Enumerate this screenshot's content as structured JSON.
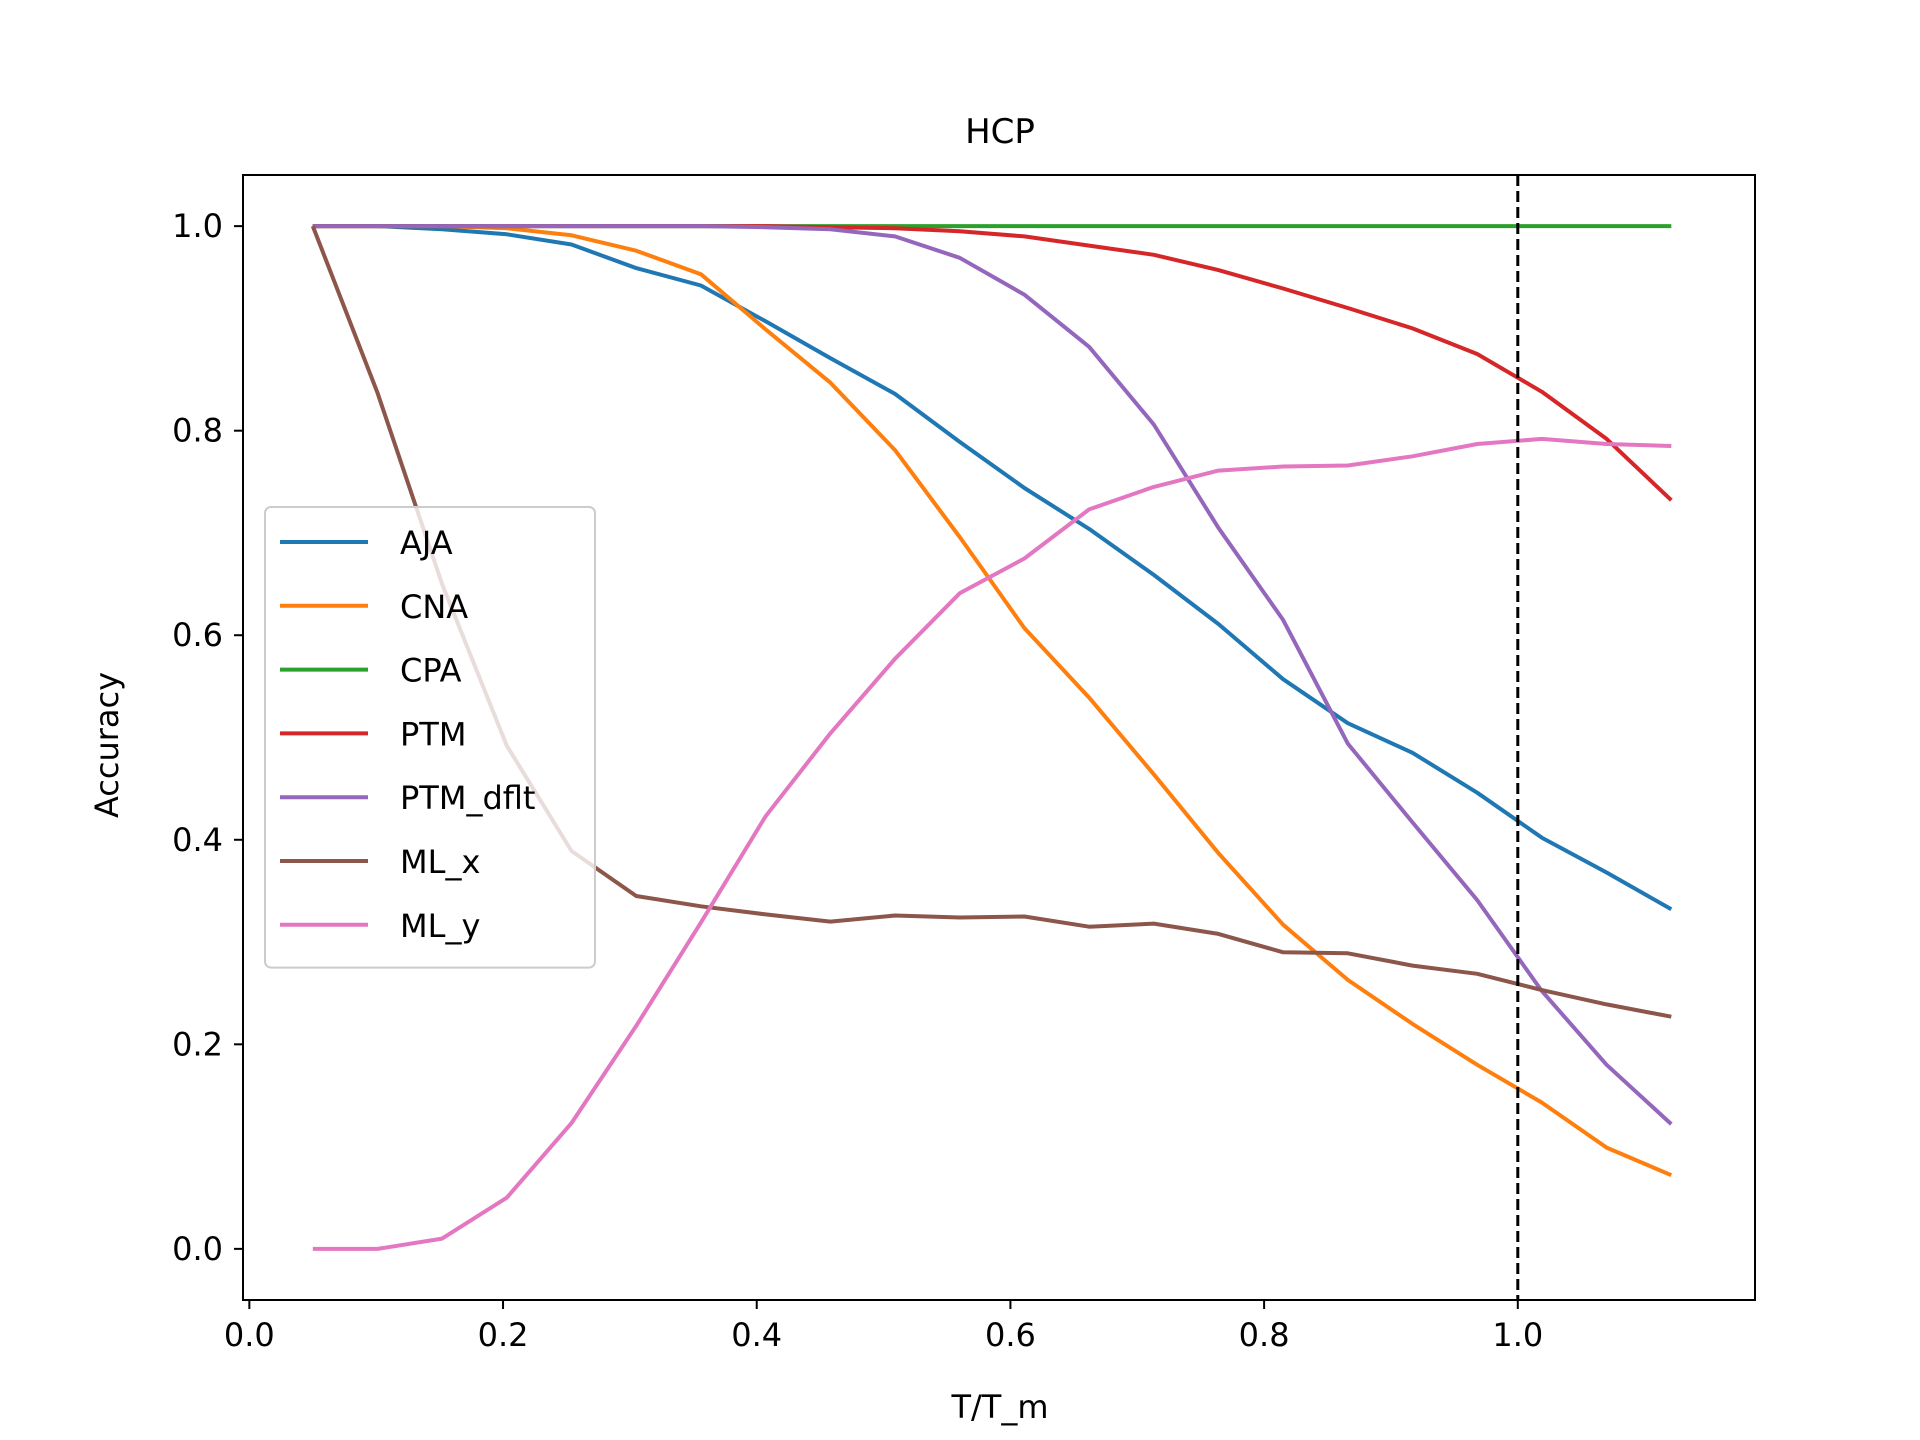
{
  "chart_data": {
    "type": "line",
    "title": "HCP",
    "xlabel": "T/T_m",
    "ylabel": "Accuracy",
    "xlim": [
      -0.005,
      1.187
    ],
    "ylim": [
      -0.05,
      1.05
    ],
    "xticks": [
      0.0,
      0.2,
      0.4,
      0.6,
      0.8,
      1.0
    ],
    "yticks": [
      0.0,
      0.2,
      0.4,
      0.6,
      0.8,
      1.0
    ],
    "xtick_labels": [
      "0.0",
      "0.2",
      "0.4",
      "0.6",
      "0.8",
      "1.0"
    ],
    "ytick_labels": [
      "0.0",
      "0.2",
      "0.4",
      "0.6",
      "0.8",
      "1.0"
    ],
    "grid": false,
    "legend_position": "center-left",
    "reference_line": {
      "x": 1.0,
      "style": "dashed",
      "color": "#000000"
    },
    "x": [
      0.05,
      0.101,
      0.152,
      0.203,
      0.254,
      0.305,
      0.356,
      0.407,
      0.458,
      0.509,
      0.56,
      0.611,
      0.662,
      0.713,
      0.764,
      0.815,
      0.866,
      0.917,
      0.968,
      1.019,
      1.07,
      1.121
    ],
    "series": [
      {
        "name": "AJA",
        "color": "#1f77b4",
        "values": [
          1.0,
          1.0,
          0.997,
          0.992,
          0.982,
          0.959,
          0.942,
          0.907,
          0.871,
          0.836,
          0.789,
          0.744,
          0.704,
          0.659,
          0.611,
          0.557,
          0.514,
          0.485,
          0.446,
          0.402,
          0.368,
          0.332
        ]
      },
      {
        "name": "CNA",
        "color": "#ff7f0e",
        "values": [
          1.0,
          1.0,
          1.0,
          0.998,
          0.991,
          0.976,
          0.953,
          0.899,
          0.847,
          0.781,
          0.696,
          0.607,
          0.539,
          0.464,
          0.387,
          0.317,
          0.263,
          0.22,
          0.18,
          0.143,
          0.099,
          0.072
        ]
      },
      {
        "name": "CPA",
        "color": "#2ca02c",
        "values": [
          1.0,
          1.0,
          1.0,
          1.0,
          1.0,
          1.0,
          1.0,
          1.0,
          1.0,
          1.0,
          1.0,
          1.0,
          1.0,
          1.0,
          1.0,
          1.0,
          1.0,
          1.0,
          1.0,
          1.0,
          1.0,
          1.0
        ]
      },
      {
        "name": "PTM",
        "color": "#d62728",
        "values": [
          1.0,
          1.0,
          1.0,
          1.0,
          1.0,
          1.0,
          1.0,
          1.0,
          0.999,
          0.998,
          0.995,
          0.99,
          0.981,
          0.972,
          0.957,
          0.939,
          0.92,
          0.9,
          0.875,
          0.838,
          0.792,
          0.732
        ]
      },
      {
        "name": "PTM_dflt",
        "color": "#9467bd",
        "values": [
          1.0,
          1.0,
          1.0,
          1.0,
          1.0,
          1.0,
          1.0,
          0.999,
          0.997,
          0.99,
          0.969,
          0.933,
          0.882,
          0.806,
          0.705,
          0.615,
          0.494,
          0.417,
          0.341,
          0.252,
          0.18,
          0.122
        ]
      },
      {
        "name": "ML_x",
        "color": "#8c564b",
        "values": [
          1.0,
          0.837,
          0.65,
          0.492,
          0.389,
          0.345,
          0.335,
          0.327,
          0.32,
          0.326,
          0.324,
          0.325,
          0.315,
          0.318,
          0.308,
          0.29,
          0.289,
          0.277,
          0.269,
          0.253,
          0.239,
          0.227
        ]
      },
      {
        "name": "ML_y",
        "color": "#e377c2",
        "values": [
          0.0,
          0.0,
          0.01,
          0.05,
          0.123,
          0.218,
          0.319,
          0.423,
          0.504,
          0.577,
          0.641,
          0.675,
          0.723,
          0.745,
          0.761,
          0.765,
          0.766,
          0.775,
          0.787,
          0.792,
          0.787,
          0.785
        ]
      }
    ]
  }
}
